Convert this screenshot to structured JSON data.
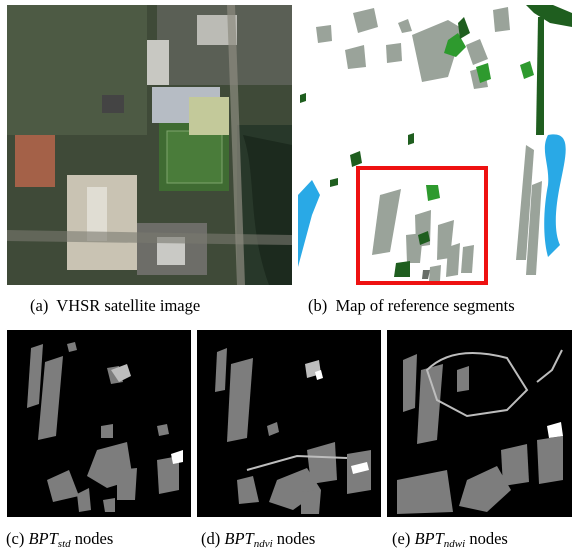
{
  "figure": {
    "captions": {
      "a": {
        "label": "(a)",
        "text": "VHSR satellite image"
      },
      "b": {
        "label": "(b)",
        "text": "Map of reference segments"
      },
      "c": {
        "label": "(c)",
        "name": "BPT",
        "sub": "std",
        "suffix": "nodes"
      },
      "d": {
        "label": "(d)",
        "name": "BPT",
        "sub": "ndvi",
        "suffix": "nodes"
      },
      "e": {
        "label": "(e)",
        "name": "BPT",
        "sub": "ndwi",
        "suffix": "nodes"
      }
    },
    "colors": {
      "building_gray": "#9aa39a",
      "vegetation_green": "#2e9a2e",
      "dark_green": "#1f5e1f",
      "water_blue": "#29a9e6",
      "highlight_red": "#ee1111",
      "node_gray": "#7d7d7d",
      "node_light": "#bdbdbd",
      "panel_black": "#000000"
    },
    "icons": {
      "satellite": "aerial-photo",
      "reference": "segment-map",
      "nodes": "node-map"
    }
  }
}
